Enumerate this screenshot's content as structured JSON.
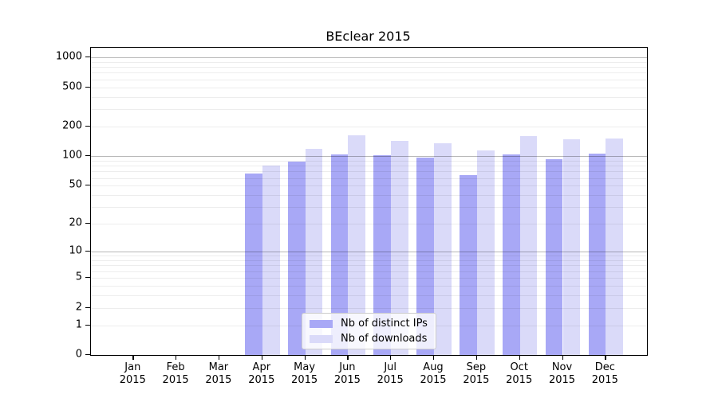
{
  "chart_data": {
    "type": "bar",
    "title": "BEclear 2015",
    "scale": "log1p",
    "grid": "on",
    "legend_position": "lower center",
    "categories": [
      "Jan",
      "Feb",
      "Mar",
      "Apr",
      "May",
      "Jun",
      "Jul",
      "Aug",
      "Sep",
      "Oct",
      "Nov",
      "Dec"
    ],
    "category_year": "2015",
    "series": [
      {
        "name": "Nb of distinct IPs",
        "color": "#a8a8f6",
        "values": [
          0,
          0,
          0,
          66,
          88,
          105,
          102,
          97,
          64,
          105,
          94,
          107
        ]
      },
      {
        "name": "Nb of downloads",
        "color": "#dadaf9",
        "values": [
          0,
          0,
          0,
          80,
          118,
          162,
          143,
          135,
          114,
          160,
          148,
          150
        ]
      }
    ],
    "yticks": [
      "0",
      "1",
      "2",
      "5",
      "10",
      "20",
      "50",
      "100",
      "200",
      "500",
      "1000"
    ],
    "ylim": [
      0,
      1230
    ],
    "xlabel": "",
    "ylabel": ""
  }
}
